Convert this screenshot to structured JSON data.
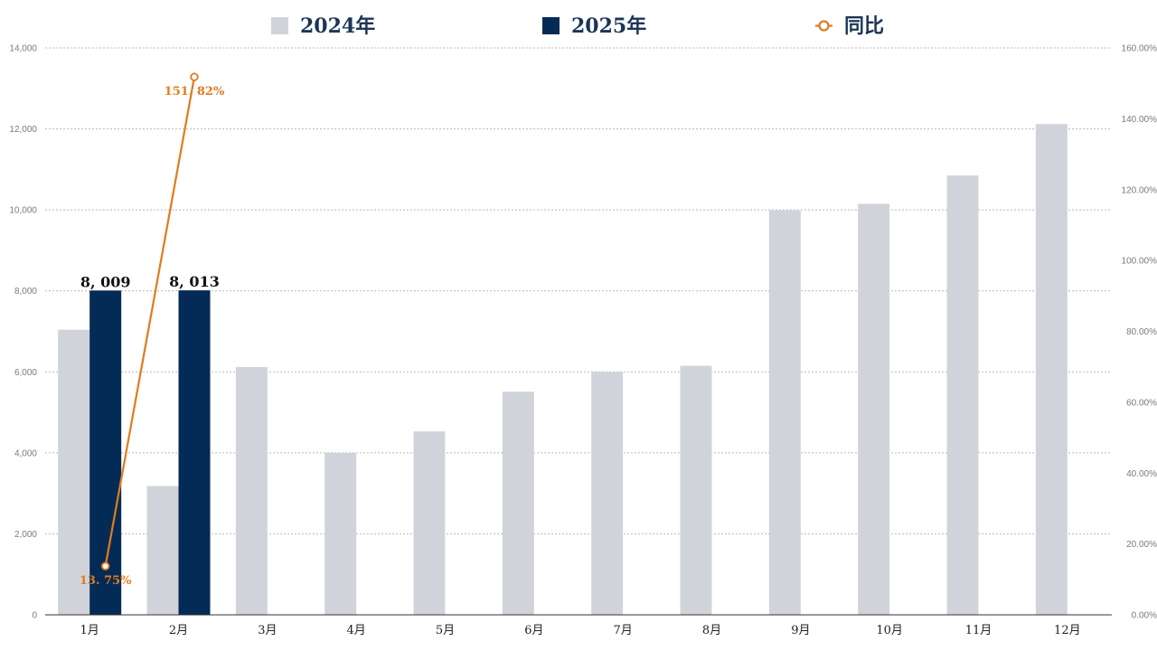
{
  "chart_data": {
    "type": "bar",
    "categories": [
      "1月",
      "2月",
      "3月",
      "4月",
      "5月",
      "6月",
      "7月",
      "8月",
      "9月",
      "10月",
      "11月",
      "12月"
    ],
    "series": [
      {
        "name": "2024年",
        "kind": "bar",
        "axis": "left",
        "color": "#d0d4da",
        "values": [
          7040,
          3180,
          6120,
          4000,
          4530,
          5510,
          6000,
          6150,
          9990,
          10150,
          10850,
          12120
        ]
      },
      {
        "name": "2025年",
        "kind": "bar",
        "axis": "left",
        "color": "#042b55",
        "values": [
          8009,
          8013,
          null,
          null,
          null,
          null,
          null,
          null,
          null,
          null,
          null,
          null
        ],
        "data_labels": [
          "8, 009",
          "8, 013",
          null,
          null,
          null,
          null,
          null,
          null,
          null,
          null,
          null,
          null
        ]
      },
      {
        "name": "同比",
        "kind": "line",
        "axis": "right",
        "color": "#e07b1e",
        "values": [
          13.75,
          151.82,
          null,
          null,
          null,
          null,
          null,
          null,
          null,
          null,
          null,
          null
        ],
        "data_labels": [
          "13. 75%",
          "151. 82%",
          null,
          null,
          null,
          null,
          null,
          null,
          null,
          null,
          null,
          null
        ]
      }
    ],
    "y_left": {
      "ylim": [
        0,
        14000
      ],
      "ticks": [
        0,
        2000,
        4000,
        6000,
        8000,
        10000,
        12000,
        14000
      ],
      "tick_labels": [
        "0",
        "2,000",
        "4,000",
        "6,000",
        "8,000",
        "10,000",
        "12,000",
        "14,000"
      ]
    },
    "y_right": {
      "ylim": [
        0,
        160
      ],
      "ticks": [
        0,
        20,
        40,
        60,
        80,
        100,
        120,
        140,
        160
      ],
      "tick_labels": [
        "0.00%",
        "20.00%",
        "40.00%",
        "60.00%",
        "80.00%",
        "100.00%",
        "120.00%",
        "140.00%",
        "160.00%"
      ]
    },
    "grid": true,
    "legend": "top-center",
    "title": "",
    "xlabel": "",
    "ylabel": ""
  }
}
